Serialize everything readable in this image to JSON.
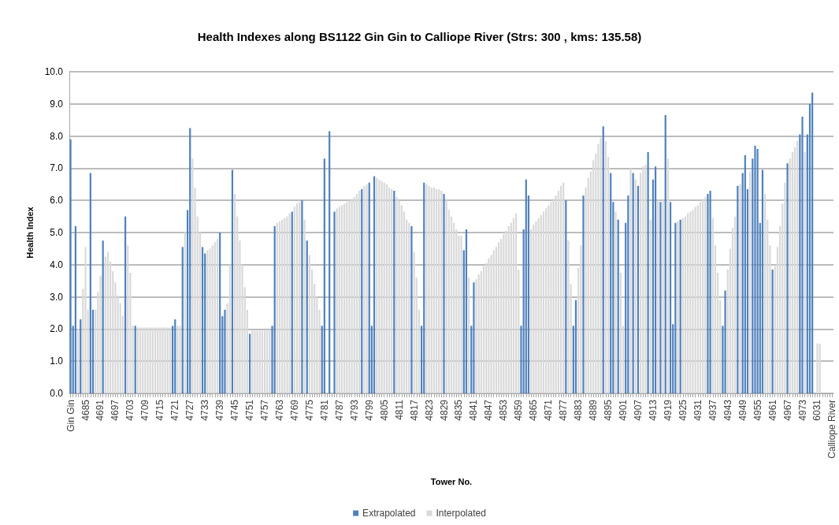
{
  "chart_data": {
    "type": "bar",
    "title": "Health Indexes along BS1122 Gin Gin to Calliope River (Strs: 300 , kms: 135.58)",
    "xlabel": "Tower No.",
    "ylabel": "Health Index",
    "categories": [
      "Gin Gin",
      null,
      null,
      null,
      null,
      null,
      "4685",
      null,
      null,
      null,
      null,
      null,
      "4691",
      null,
      null,
      null,
      null,
      null,
      "4697",
      null,
      null,
      null,
      null,
      null,
      "4703",
      null,
      null,
      null,
      null,
      null,
      "4709",
      null,
      null,
      null,
      null,
      null,
      "4715",
      null,
      null,
      null,
      null,
      null,
      "4721",
      null,
      null,
      null,
      null,
      null,
      "4727",
      null,
      null,
      null,
      null,
      null,
      "4733",
      null,
      null,
      null,
      null,
      null,
      "4739",
      null,
      null,
      null,
      null,
      null,
      "4745",
      null,
      null,
      null,
      null,
      null,
      "4751",
      null,
      null,
      null,
      null,
      null,
      "4757",
      null,
      null,
      null,
      null,
      null,
      "4763",
      null,
      null,
      null,
      null,
      null,
      "4769",
      null,
      null,
      null,
      null,
      null,
      "4775",
      null,
      null,
      null,
      null,
      null,
      "4781",
      null,
      null,
      null,
      null,
      null,
      "4787",
      null,
      null,
      null,
      null,
      null,
      "4793",
      null,
      null,
      null,
      null,
      null,
      "4799",
      null,
      null,
      null,
      null,
      null,
      "4805",
      null,
      null,
      null,
      null,
      null,
      "4811",
      null,
      null,
      null,
      null,
      null,
      "4817",
      null,
      null,
      null,
      null,
      null,
      "4823",
      null,
      null,
      null,
      null,
      null,
      "4829",
      null,
      null,
      null,
      null,
      null,
      "4835",
      null,
      null,
      null,
      null,
      null,
      "4841",
      null,
      null,
      null,
      null,
      null,
      "4847",
      null,
      null,
      null,
      null,
      null,
      "4853",
      null,
      null,
      null,
      null,
      null,
      "4859",
      null,
      null,
      null,
      null,
      null,
      "4865",
      null,
      null,
      null,
      null,
      null,
      "4871",
      null,
      null,
      null,
      null,
      null,
      "4877",
      null,
      null,
      null,
      null,
      null,
      "4883",
      null,
      null,
      null,
      null,
      null,
      "4889",
      null,
      null,
      null,
      null,
      null,
      "4895",
      null,
      null,
      null,
      null,
      null,
      "4901",
      null,
      null,
      null,
      null,
      null,
      "4907",
      null,
      null,
      null,
      null,
      null,
      "4913",
      null,
      null,
      null,
      null,
      null,
      "4919",
      null,
      null,
      null,
      null,
      null,
      "4925",
      null,
      null,
      null,
      null,
      null,
      "4931",
      null,
      null,
      null,
      null,
      null,
      "4937",
      null,
      null,
      null,
      null,
      null,
      "4943",
      null,
      null,
      null,
      null,
      null,
      "4949",
      null,
      null,
      null,
      null,
      null,
      "4955",
      null,
      null,
      null,
      null,
      null,
      "4961",
      null,
      null,
      null,
      null,
      null,
      "4967",
      null,
      null,
      null,
      null,
      null,
      "4973",
      null,
      null,
      null,
      null,
      null,
      "6031",
      null,
      null,
      null,
      null,
      null,
      "Calliope River"
    ],
    "series": [
      {
        "name": "Extrapolated",
        "color": "#4f81bd",
        "values": [
          7.9,
          2.1,
          5.2,
          null,
          2.3,
          null,
          null,
          null,
          6.85,
          2.6,
          null,
          null,
          null,
          4.75,
          null,
          null,
          null,
          null,
          null,
          null,
          null,
          null,
          5.5,
          null,
          null,
          null,
          2.1,
          null,
          null,
          null,
          null,
          null,
          null,
          null,
          null,
          null,
          null,
          null,
          null,
          null,
          null,
          2.1,
          2.3,
          null,
          null,
          4.55,
          null,
          5.7,
          8.25,
          null,
          null,
          null,
          null,
          4.55,
          4.35,
          null,
          null,
          null,
          null,
          null,
          5.0,
          2.4,
          2.6,
          null,
          null,
          6.95,
          null,
          null,
          null,
          null,
          null,
          null,
          1.85,
          null,
          null,
          null,
          null,
          null,
          null,
          null,
          null,
          2.1,
          5.2,
          null,
          null,
          null,
          null,
          null,
          null,
          5.65,
          null,
          null,
          null,
          6.0,
          null,
          4.75,
          null,
          null,
          null,
          null,
          null,
          2.1,
          7.3,
          null,
          8.15,
          null,
          5.65,
          null,
          null,
          null,
          null,
          null,
          null,
          null,
          null,
          null,
          null,
          6.35,
          null,
          null,
          6.55,
          2.1,
          6.75,
          null,
          null,
          null,
          null,
          null,
          null,
          null,
          6.3,
          null,
          null,
          null,
          null,
          null,
          null,
          5.2,
          null,
          null,
          null,
          2.1,
          6.55,
          null,
          null,
          null,
          null,
          null,
          null,
          null,
          6.2,
          null,
          null,
          null,
          null,
          null,
          null,
          null,
          4.45,
          5.1,
          null,
          2.1,
          3.45,
          null,
          null,
          null,
          null,
          null,
          null,
          null,
          null,
          null,
          null,
          null,
          null,
          null,
          null,
          null,
          null,
          null,
          null,
          2.1,
          5.1,
          6.65,
          6.15,
          null,
          null,
          null,
          null,
          null,
          null,
          null,
          null,
          null,
          null,
          null,
          null,
          null,
          null,
          6.0,
          null,
          null,
          2.1,
          2.9,
          null,
          null,
          6.15,
          null,
          null,
          null,
          null,
          null,
          null,
          null,
          8.3,
          null,
          null,
          6.85,
          5.95,
          null,
          5.4,
          null,
          null,
          5.3,
          6.15,
          null,
          6.85,
          null,
          6.45,
          null,
          null,
          null,
          7.5,
          null,
          6.65,
          7.05,
          null,
          5.95,
          null,
          8.65,
          null,
          5.95,
          2.15,
          5.3,
          null,
          5.4,
          null,
          null,
          null,
          null,
          null,
          null,
          null,
          null,
          null,
          null,
          6.2,
          6.3,
          null,
          null,
          null,
          null,
          2.1,
          3.2,
          null,
          null,
          null,
          null,
          6.45,
          null,
          6.85,
          7.4,
          6.35,
          null,
          7.3,
          7.7,
          7.6,
          5.3,
          6.95,
          null,
          null,
          null,
          3.85,
          null,
          null,
          null,
          null,
          null,
          7.15,
          null,
          null,
          null,
          null,
          8.05,
          8.6,
          null,
          8.05,
          9.0,
          9.35,
          null,
          null,
          null,
          null,
          null,
          null,
          null,
          null
        ]
      },
      {
        "name": "Interpolated",
        "color": "#d9d9d9",
        "values": [
          null,
          null,
          null,
          2.0,
          null,
          3.25,
          4.55,
          2.6,
          null,
          null,
          2.6,
          3.15,
          3.65,
          null,
          4.25,
          4.4,
          4.1,
          3.8,
          3.45,
          3.05,
          2.8,
          2.4,
          null,
          4.6,
          3.75,
          2.1,
          null,
          2.05,
          2.05,
          2.05,
          2.05,
          2.05,
          2.05,
          2.05,
          2.05,
          2.05,
          2.05,
          2.05,
          2.05,
          2.05,
          2.05,
          null,
          null,
          2.1,
          2.1,
          null,
          5.0,
          null,
          null,
          7.3,
          6.4,
          5.5,
          5.0,
          null,
          null,
          4.45,
          4.5,
          4.6,
          4.7,
          4.8,
          null,
          null,
          null,
          2.8,
          4.0,
          null,
          6.2,
          5.5,
          4.75,
          4.0,
          3.3,
          2.6,
          null,
          1.95,
          1.95,
          1.95,
          1.95,
          1.95,
          1.95,
          1.95,
          1.95,
          null,
          null,
          5.3,
          5.35,
          5.4,
          5.45,
          5.5,
          5.6,
          null,
          5.8,
          5.9,
          5.95,
          null,
          5.4,
          null,
          4.3,
          3.85,
          3.4,
          3.0,
          2.6,
          null,
          null,
          null,
          null,
          null,
          null,
          5.75,
          5.8,
          5.85,
          5.9,
          5.95,
          6.0,
          6.05,
          6.1,
          6.2,
          6.3,
          null,
          6.45,
          6.5,
          null,
          null,
          null,
          6.7,
          6.65,
          6.6,
          6.55,
          6.5,
          6.4,
          6.35,
          null,
          6.1,
          6.0,
          5.85,
          5.65,
          5.4,
          5.3,
          null,
          4.4,
          3.6,
          2.6,
          null,
          null,
          6.5,
          6.45,
          6.4,
          6.4,
          6.35,
          6.35,
          6.3,
          null,
          6.0,
          5.7,
          5.5,
          5.3,
          5.1,
          4.9,
          4.9,
          null,
          null,
          3.6,
          null,
          null,
          3.55,
          3.7,
          3.8,
          3.95,
          4.05,
          4.2,
          4.3,
          4.45,
          4.55,
          4.7,
          4.8,
          4.95,
          5.05,
          5.2,
          5.3,
          5.45,
          5.6,
          3.85,
          null,
          null,
          null,
          null,
          5.1,
          5.25,
          5.35,
          5.45,
          5.55,
          5.65,
          5.75,
          5.85,
          5.95,
          6.05,
          6.15,
          6.3,
          6.45,
          6.55,
          null,
          4.75,
          3.4,
          null,
          null,
          3.9,
          4.6,
          null,
          6.4,
          6.7,
          6.9,
          7.25,
          7.45,
          7.75,
          7.95,
          null,
          7.85,
          7.35,
          null,
          null,
          5.65,
          null,
          3.75,
          2.1,
          null,
          null,
          7.0,
          null,
          6.65,
          null,
          6.85,
          7.05,
          7.1,
          null,
          5.4,
          null,
          null,
          6.0,
          null,
          6.0,
          null,
          7.3,
          null,
          null,
          null,
          5.35,
          null,
          5.45,
          5.5,
          5.6,
          5.65,
          5.7,
          5.8,
          5.85,
          5.95,
          6.05,
          6.1,
          null,
          null,
          5.45,
          4.6,
          3.75,
          2.9,
          null,
          null,
          3.85,
          4.5,
          5.15,
          5.5,
          null,
          6.5,
          null,
          null,
          null,
          6.9,
          null,
          null,
          null,
          null,
          null,
          6.2,
          5.4,
          4.6,
          null,
          3.95,
          4.55,
          5.2,
          5.9,
          6.55,
          null,
          7.3,
          7.5,
          7.65,
          7.85,
          null,
          null,
          7.5,
          null,
          null,
          null,
          null,
          1.55,
          1.55,
          null,
          null,
          null,
          null,
          null
        ]
      }
    ],
    "ylim": [
      0,
      10
    ],
    "yticks": [
      {
        "value": 0,
        "label": "0.0"
      },
      {
        "value": 1,
        "label": "1.0"
      },
      {
        "value": 2,
        "label": "2.0"
      },
      {
        "value": 3,
        "label": "3.0"
      },
      {
        "value": 4,
        "label": "4.0"
      },
      {
        "value": 5,
        "label": "5.0"
      },
      {
        "value": 6,
        "label": "6.0"
      },
      {
        "value": 7,
        "label": "7.0"
      },
      {
        "value": 8,
        "label": "8.0"
      },
      {
        "value": 9,
        "label": "9.0"
      },
      {
        "value": 10,
        "label": "10.0"
      }
    ],
    "grid": "y",
    "legend": "bottom"
  }
}
